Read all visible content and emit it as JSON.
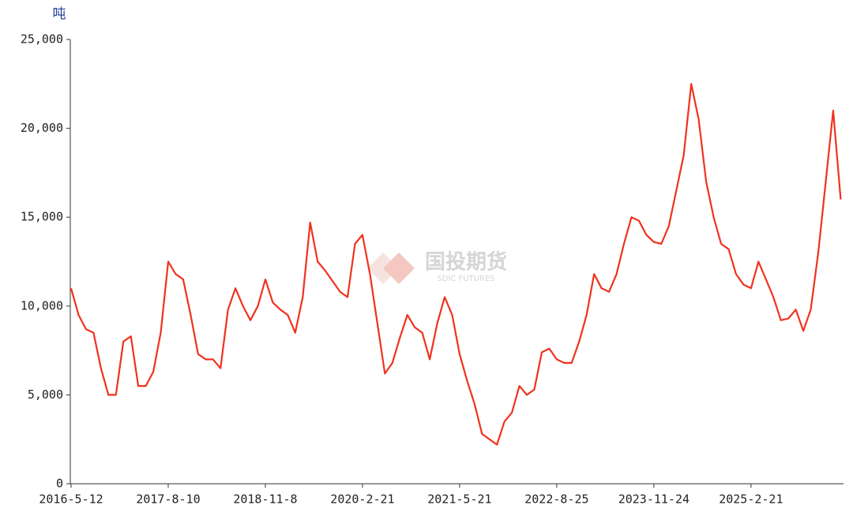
{
  "chart_data": {
    "type": "line",
    "y_unit": "吨",
    "watermark": {
      "name": "国投期货",
      "name_en": "SDIC FUTURES"
    },
    "categories": [
      "2016-5-12",
      null,
      null,
      null,
      null,
      null,
      null,
      null,
      null,
      null,
      null,
      null,
      null,
      "2017-8-10",
      null,
      null,
      null,
      null,
      null,
      null,
      null,
      null,
      null,
      null,
      null,
      null,
      "2018-11-8",
      null,
      null,
      null,
      null,
      null,
      null,
      null,
      null,
      null,
      null,
      null,
      null,
      "2020-2-21",
      null,
      null,
      null,
      null,
      null,
      null,
      null,
      null,
      null,
      null,
      null,
      null,
      "2021-5-21",
      null,
      null,
      null,
      null,
      null,
      null,
      null,
      null,
      null,
      null,
      null,
      null,
      "2022-8-25",
      null,
      null,
      null,
      null,
      null,
      null,
      null,
      null,
      null,
      null,
      null,
      null,
      "2023-11-24",
      null,
      null,
      null,
      null,
      null,
      null,
      null,
      null,
      null,
      null,
      null,
      null,
      "2025-2-21",
      null,
      null,
      null,
      null,
      null,
      null,
      null,
      null,
      null,
      null,
      null,
      null
    ],
    "values": [
      11000,
      9500,
      8700,
      8500,
      6500,
      5000,
      5000,
      8000,
      8300,
      5500,
      5500,
      6300,
      8500,
      12500,
      11800,
      11500,
      9500,
      7300,
      7000,
      7000,
      6500,
      9800,
      11000,
      10000,
      9200,
      10000,
      11500,
      10200,
      9800,
      9500,
      8500,
      10500,
      14700,
      12500,
      12000,
      11400,
      10800,
      10500,
      13500,
      14000,
      11800,
      9000,
      6200,
      6800,
      8200,
      9500,
      8800,
      8500,
      7000,
      9000,
      10500,
      9500,
      7300,
      5800,
      4500,
      2800,
      2500,
      2200,
      3500,
      4000,
      5500,
      5000,
      5300,
      7400,
      7600,
      7000,
      6800,
      6800,
      8000,
      9500,
      11800,
      11000,
      10800,
      11800,
      13500,
      15000,
      14800,
      14000,
      13600,
      13500,
      14500,
      16500,
      18500,
      22500,
      20500,
      17000,
      15000,
      13500,
      13200,
      11800,
      11200,
      11000,
      12500,
      11500,
      10500,
      9200,
      9300,
      9800,
      8600,
      9800,
      13000,
      17000,
      21000,
      16000
    ],
    "color": "#f0321e",
    "ylim": [
      0,
      25000
    ],
    "yticks": [
      0,
      {
        "value": 5000,
        "label": "5,000"
      },
      {
        "value": 10000,
        "label": "10,000"
      },
      {
        "value": 15000,
        "label": "15,000"
      },
      {
        "value": 20000,
        "label": "20,000"
      },
      {
        "value": 25000,
        "label": "25,000"
      }
    ],
    "grid": false
  }
}
